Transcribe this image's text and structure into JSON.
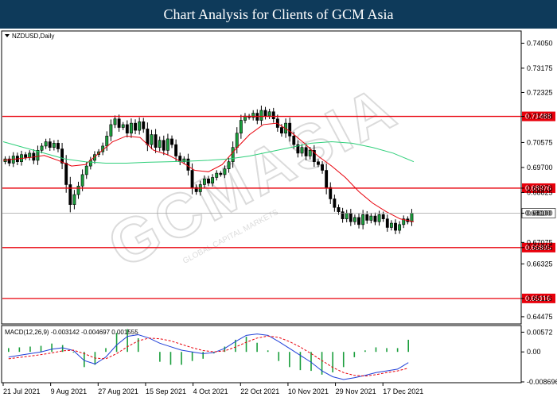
{
  "header": {
    "title": "Chart Analysis for Clients of GCM Asia"
  },
  "watermark": {
    "text": "GCMASIA",
    "subtext": "GLOBAL CAPITAL MARKETS"
  },
  "chart_data": {
    "type": "candlestick",
    "symbol_label": "NZDUSD,Daily",
    "price_axis": {
      "ticks": [
        "0.74050",
        "0.73175",
        "0.72325",
        "0.71488",
        "0.70575",
        "0.69700",
        "0.68976",
        "0.68825",
        "0.68100",
        "0.67075",
        "0.66895",
        "0.66325",
        "0.65116",
        "0.64475"
      ],
      "range": [
        0.6425,
        0.7445
      ]
    },
    "levels": [
      {
        "value": 0.71488,
        "label": "0.71488",
        "color": "#e8000b"
      },
      {
        "value": 0.68976,
        "label": "0.68976",
        "color": "#e8000b"
      },
      {
        "value": 0.66895,
        "label": "0.66895",
        "color": "#e8000b"
      },
      {
        "value": 0.65116,
        "label": "0.65116",
        "color": "#e8000b"
      }
    ],
    "current_price": {
      "value": 0.681,
      "label": "0.68100"
    },
    "x_labels": [
      "21 Jul 2021",
      "9 Aug 2021",
      "27 Aug 2021",
      "15 Sep 2021",
      "4 Oct 2021",
      "22 Oct 2021",
      "10 Nov 2021",
      "29 Nov 2021",
      "17 Dec 2021"
    ],
    "closes": [
      0.7,
      0.6985,
      0.701,
      0.699,
      0.7015,
      0.7005,
      0.702,
      0.6995,
      0.703,
      0.7045,
      0.706,
      0.704,
      0.7055,
      0.7035,
      0.6985,
      0.691,
      0.684,
      0.6875,
      0.6905,
      0.6945,
      0.6975,
      0.6995,
      0.7015,
      0.7025,
      0.7045,
      0.708,
      0.712,
      0.714,
      0.711,
      0.712,
      0.709,
      0.7125,
      0.71,
      0.713,
      0.7105,
      0.705,
      0.7085,
      0.704,
      0.7065,
      0.703,
      0.707,
      0.705,
      0.701,
      0.699,
      0.7,
      0.696,
      0.69,
      0.6885,
      0.691,
      0.693,
      0.6915,
      0.6935,
      0.695,
      0.6945,
      0.6965,
      0.699,
      0.704,
      0.709,
      0.7135,
      0.715,
      0.7145,
      0.716,
      0.7135,
      0.717,
      0.715,
      0.7165,
      0.714,
      0.711,
      0.709,
      0.7125,
      0.708,
      0.705,
      0.702,
      0.704,
      0.701,
      0.703,
      0.699,
      0.698,
      0.696,
      0.69,
      0.686,
      0.683,
      0.6815,
      0.679,
      0.681,
      0.678,
      0.6795,
      0.677,
      0.6805,
      0.6785,
      0.68,
      0.678,
      0.6805,
      0.679,
      0.676,
      0.6775,
      0.675,
      0.677,
      0.679,
      0.678,
      0.681
    ],
    "moving_averages": [
      {
        "color": "#e8000b",
        "values": [
          0.6995,
          0.7,
          0.7005,
          0.7012,
          0.6995,
          0.6975,
          0.698,
          0.702,
          0.706,
          0.708,
          0.7075,
          0.703,
          0.7015,
          0.699,
          0.696,
          0.6955,
          0.698,
          0.7035,
          0.7085,
          0.712,
          0.7125,
          0.7095,
          0.7055,
          0.701,
          0.6975,
          0.6935,
          0.6885,
          0.6845,
          0.6815,
          0.679,
          0.678
        ]
      },
      {
        "color": "#2fcf7a",
        "values": [
          0.706,
          0.704,
          0.702,
          0.7,
          0.699,
          0.6985,
          0.6985,
          0.6988,
          0.699,
          0.6992,
          0.6995,
          0.7,
          0.701,
          0.7025,
          0.704,
          0.7055,
          0.706,
          0.7055,
          0.704,
          0.702,
          0.699
        ]
      }
    ],
    "macd": {
      "label": "MACD(12,26,9) -0.003142 -0.004697 0.001555",
      "axis_ticks": [
        "0.00572",
        "0.00",
        "-0.008696"
      ],
      "range": [
        -0.0087,
        0.0058
      ],
      "line": [
        -0.0015,
        -0.001,
        -0.0005,
        0.0,
        0.0008,
        0.0012,
        0.0004,
        -0.0025,
        -0.0035,
        -0.0015,
        0.002,
        0.0045,
        0.005,
        0.004,
        0.0025,
        0.0015,
        0.0005,
        0.0,
        -0.0005,
        -0.0002,
        0.001,
        0.003,
        0.0048,
        0.0052,
        0.0048,
        0.003,
        0.001,
        -0.001,
        -0.003,
        -0.0055,
        -0.0072,
        -0.008,
        -0.0075,
        -0.0068,
        -0.006,
        -0.0055,
        -0.005,
        -0.0031
      ],
      "signal": [
        -0.002,
        -0.0016,
        -0.0012,
        -0.0008,
        -0.0003,
        0.0003,
        0.0005,
        -0.0005,
        -0.0018,
        -0.002,
        -0.0005,
        0.0015,
        0.0032,
        0.004,
        0.0038,
        0.0032,
        0.0022,
        0.0012,
        0.0004,
        0.0,
        0.0003,
        0.0014,
        0.0028,
        0.004,
        0.0046,
        0.0042,
        0.003,
        0.0014,
        -0.0005,
        -0.0025,
        -0.0045,
        -0.006,
        -0.0068,
        -0.007,
        -0.0066,
        -0.006,
        -0.0055,
        -0.0047
      ]
    }
  }
}
